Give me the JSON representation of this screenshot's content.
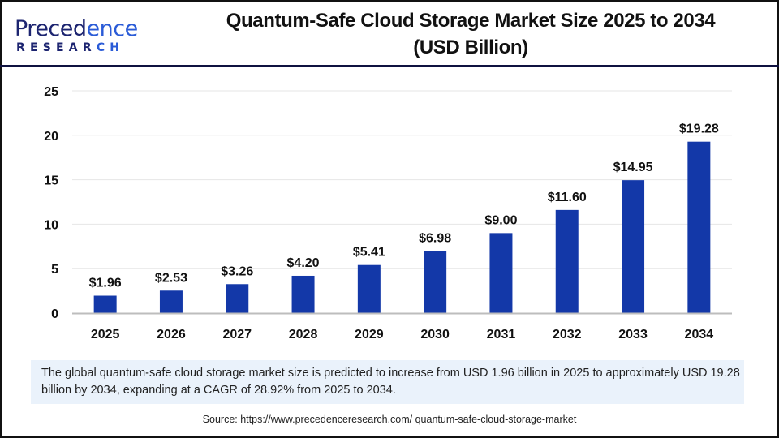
{
  "brand": {
    "logo_text_main": "Precedence",
    "logo_text_sub": "RESEARCH"
  },
  "title_line1": "Quantum-Safe Cloud Storage Market Size 2025 to 2034",
  "title_line2": "(USD Billion)",
  "info_text": "The global quantum-safe cloud storage market size is predicted to increase from USD 1.96 billion in 2025 to approximately USD 19.28 billion by 2034, expanding at a CAGR of 28.92% from 2025 to 2034.",
  "source": "Source: https://www.precedenceresearch.com/ quantum-safe-cloud-storage-market",
  "colors": {
    "bar": "#1338a8",
    "header_divider": "#0f1240",
    "info_bg": "#eaf2fb"
  },
  "chart_data": {
    "type": "bar",
    "title": "Quantum-Safe Cloud Storage Market Size 2025 to 2034 (USD Billion)",
    "xlabel": "",
    "ylabel": "",
    "categories": [
      "2025",
      "2026",
      "2027",
      "2028",
      "2029",
      "2030",
      "2031",
      "2032",
      "2033",
      "2034"
    ],
    "values": [
      1.96,
      2.53,
      3.26,
      4.2,
      5.41,
      6.98,
      9.0,
      11.6,
      14.95,
      19.28
    ],
    "data_labels": [
      "$1.96",
      "$2.53",
      "$3.26",
      "$4.20",
      "$5.41",
      "$6.98",
      "$9.00",
      "$11.60",
      "$14.95",
      "$19.28"
    ],
    "yticks": [
      0,
      5,
      10,
      15,
      20,
      25
    ],
    "ylim": [
      0,
      25
    ],
    "grid": true,
    "legend": "none"
  }
}
